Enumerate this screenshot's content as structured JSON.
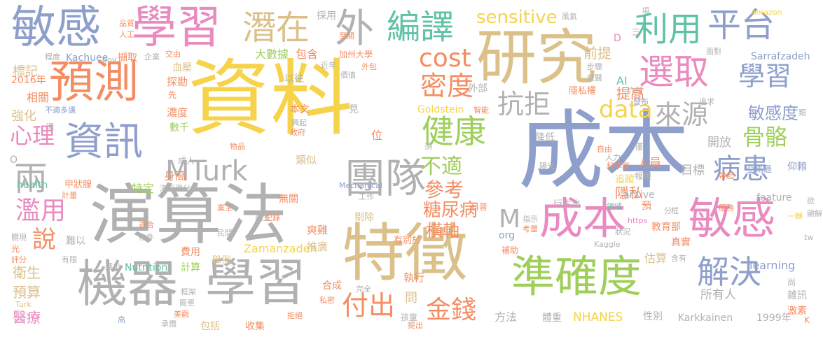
{
  "palette": {
    "yellow": "#f6d34a",
    "blue": "#8e9fcc",
    "green": "#9fcf5a",
    "tan": "#dcc08a",
    "pink": "#e98ac0",
    "orange": "#f48d62",
    "teal": "#5fc2a6",
    "gray": "#b1b1b1"
  },
  "words": {
    "w01": "資料",
    "w02": "成本",
    "w03": "演算法",
    "w04": "特徵",
    "w05": "研究",
    "w06": "機器",
    "w07": "學習",
    "w08": "敏感",
    "w09": "學習",
    "w10": "預測",
    "w11": "準確度",
    "w12": "成本",
    "w13": "敏感",
    "w14": "團隊",
    "w15": "資訊",
    "w16": "MTurk",
    "w17": "平台",
    "w18": "選取",
    "w19": "潛在",
    "w20": "編譯",
    "w21": "利用",
    "w22": "健康",
    "w23": "解決",
    "w24": "外",
    "w25": "sensitive",
    "w26": "cost",
    "w27": "密度",
    "w28": "抗拒",
    "w29": "學習",
    "w30": "來源",
    "w31": "病患",
    "w32": "骨骼",
    "w33": "data",
    "w34": "付出",
    "w35": "金錢",
    "w36": "心理",
    "w37": "兩",
    "w38": "濫用",
    "w39": "說",
    "w40": "不適",
    "w41": "參考",
    "w42": "糖尿病",
    "w43": "敏感度",
    "w44": "前提",
    "w45": "提高",
    "w46": "橫軸",
    "w47": "M",
    "w48": "隱私",
    "w49": "衛生",
    "w50": "預算",
    "w51": "醫療",
    "w52": "相關",
    "w53": "強化",
    "w54": "標記",
    "w55": "NHANES",
    "w56": "Zamanzadeh",
    "w57": "Karkkainen",
    "w58": "1999年",
    "w59": "learning",
    "w60": "所有人",
    "w61": "開放",
    "w62": "人員",
    "w63": "目標",
    "w64": "Goldstein",
    "w65": "Kachuee",
    "w66": "Sarrafzadeh",
    "w67": "大數據",
    "w68": "包含",
    "w69": "探勘",
    "w70": "濃度",
    "w71": "數千",
    "w72": "血壓",
    "w73": "身高",
    "w74": "特定",
    "w75": "類似",
    "w76": "外部",
    "w77": "方法",
    "w78": "性別",
    "w79": "體重",
    "w80": "執行",
    "w81": "合成",
    "w82": "剔除",
    "w83": "推廣",
    "w84": "爽雞",
    "w85": "教育部",
    "w86": "真實",
    "w87": "追蹤",
    "w88": "feature",
    "w89": "arXive",
    "w90": "health",
    "w91": "Nutrition",
    "w92": "AI",
    "w93": "2016年",
    "w94": "甲狀腺",
    "w95": "計算",
    "w96": "費用",
    "w97": "舉例",
    "w98": "收集",
    "w99": "包括",
    "w100": "問",
    "w101": "位",
    "w102": "估算",
    "w103": "降低",
    "w104": "以往",
    "w105": "本文",
    "w106": "見",
    "w107": "採用",
    "w108": "加州大學",
    "w109": "有別於",
    "w110": "無關",
    "w111": "隱私權",
    "w112": "激素",
    "w113": "雜訊",
    "w114": "仰賴",
    "w115": "亞馬遜",
    "w116": "尚",
    "w117": "Amazon",
    "w118": "Kaggle",
    "w119": "Mechanical",
    "w120": "org",
    "w121": "https",
    "w122": "人工",
    "w123": "擷取",
    "w124": "近年",
    "w125": "價值",
    "w126": "至關",
    "w127": "風氣",
    "w128": "項",
    "w129": "步驟",
    "w130": "就醫",
    "w131": "面對",
    "w132": "介紹",
    "w133": "發布",
    "w134": "追求",
    "w135": "智能",
    "w136": "政府",
    "w137": "興起",
    "w138": "人力",
    "w139": "領域",
    "w140": "服務",
    "w141": "科學家",
    "w142": "科普",
    "w143": "指示",
    "w144": "考量",
    "w145": "補助",
    "w146": "完全",
    "w147": "私密",
    "w148": "拒絕",
    "w149": "孩童",
    "w150": "提出",
    "w151": "陽光",
    "w152": "衍生出",
    "w153": "工作",
    "w154": "僅",
    "w155": "自由",
    "w156": "物品",
    "w157": "洛杉磯分校",
    "w158": "成人",
    "w159": "報報",
    "w160": "不適多讓",
    "w161": "程度",
    "w162": "企業",
    "w163": "交由",
    "w164": "gov",
    "w165": "品質",
    "w166": "一轉",
    "w167": "光",
    "w168": "評分",
    "w169": "難以",
    "w170": "有限",
    "w171": "選出",
    "w172": "物件",
    "w173": "民間",
    "w174": "建立",
    "w175": "紀錄",
    "w176": "業主",
    "w177": "適合",
    "w178": "框架",
    "w179": "簡單",
    "w180": "美觀",
    "w181": "承攬",
    "w182": "Turk",
    "w183": "高",
    "w184": "環",
    "w185": "須",
    "w186": "D",
    "w187": "三",
    "w188": "K",
    "w189": "tw",
    "w190": "帶起",
    "w191": "狀況",
    "w192": "分",
    "w193": "預",
    "w194": "欲",
    "w195": "O",
    "w196": "體現",
    "w197": "計量",
    "w198": "外包",
    "w199": "類",
    "w200": "含有",
    "w201": "先",
    "w202": "框",
    "w203": "顯解"
  }
}
